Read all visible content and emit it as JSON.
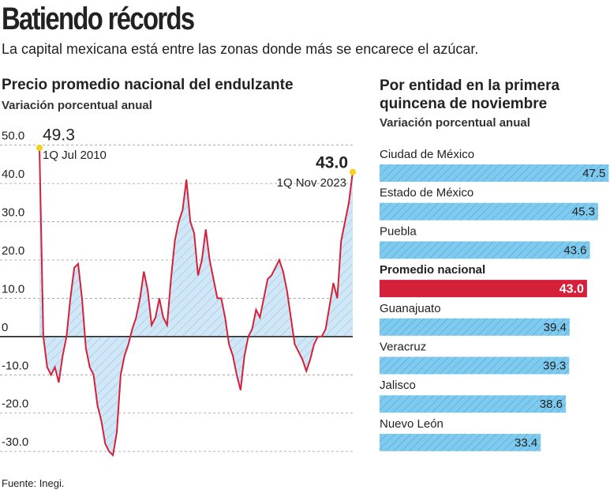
{
  "title": "Batiendo récords",
  "subtitle": "La capital mexicana está entre las zonas donde más se encarece el azúcar.",
  "source": "Fuente: Inegi.",
  "chart_data": [
    {
      "type": "line",
      "title": "Precio promedio nacional del endulzante",
      "subtitle": "Variación porcentual anual",
      "values": [
        49.3,
        0,
        -8,
        -10,
        -8,
        -12,
        -5,
        0,
        10,
        18,
        19,
        10,
        -3,
        -8,
        -10,
        -18,
        -22,
        -28,
        -30,
        -31,
        -25,
        -10,
        -5,
        -2,
        2,
        5,
        10,
        17,
        12,
        3,
        5,
        10,
        5,
        3,
        15,
        25,
        30,
        33,
        41,
        30,
        27,
        16,
        20,
        28,
        20,
        15,
        10,
        10,
        5,
        -2,
        -5,
        -10,
        -14,
        -5,
        0,
        2,
        7,
        5,
        10,
        15,
        16,
        18,
        20,
        17,
        12,
        5,
        -2,
        -4,
        -6,
        -9,
        -6,
        -2,
        0,
        0,
        2,
        8,
        14,
        10,
        25,
        30,
        35,
        43.0
      ],
      "value_labels": [
        "49.3",
        null,
        null,
        null,
        null,
        null,
        null,
        null,
        null,
        null,
        null,
        null,
        null,
        null,
        null,
        null,
        null,
        null,
        null,
        null,
        null,
        null,
        null,
        null,
        null,
        null,
        null,
        null,
        null,
        null,
        null,
        null,
        null,
        null,
        null,
        null,
        null,
        null,
        null,
        null,
        null,
        null,
        null,
        null,
        null,
        null,
        null,
        null,
        null,
        null,
        null,
        null,
        null,
        null,
        null,
        null,
        null,
        null,
        null,
        null,
        null,
        null,
        null,
        null,
        null,
        null,
        null,
        null,
        null,
        null,
        null,
        null,
        null,
        null,
        null,
        null,
        null,
        null,
        null,
        null,
        null,
        "43.0"
      ],
      "annotations": [
        "1Q Jul 2010",
        "1Q Nov 2023"
      ],
      "color": "#d6203a",
      "area_color": "#cfe7f7",
      "ylim": [
        -31,
        52
      ],
      "yticks": [
        {
          "value": 50,
          "label": "50.0"
        },
        {
          "value": 40,
          "label": "40.0"
        },
        {
          "value": 30,
          "label": "30.0"
        },
        {
          "value": 20,
          "label": "20.0"
        },
        {
          "value": 10,
          "label": "10.0"
        },
        0,
        {
          "value": -10,
          "label": "-10.0"
        },
        {
          "value": -20,
          "label": "-20.0"
        },
        {
          "value": -30,
          "label": "-30.0"
        }
      ],
      "grid": true
    },
    {
      "type": "bar",
      "orientation": "horizontal",
      "title": "Por entidad en la primera quincena de noviembre",
      "subtitle": "Variación porcentual anual",
      "categories": [
        "Ciudad de México",
        "Estado de México",
        "Puebla",
        "Promedio nacional",
        "Guanajuato",
        "Veracruz",
        "Jalisco",
        "Nuevo León"
      ],
      "values": [
        47.5,
        45.3,
        43.6,
        43.0,
        39.4,
        39.3,
        38.6,
        33.4
      ],
      "value_labels": [
        "47.5",
        "45.3",
        "43.6",
        "43.0",
        "39.4",
        "39.3",
        "38.6",
        "33.4"
      ],
      "colors": [
        "#7fcbf0",
        "#7fcbf0",
        "#7fcbf0",
        "#d6203a",
        "#7fcbf0",
        "#7fcbf0",
        "#7fcbf0",
        "#7fcbf0"
      ],
      "xlim": [
        0,
        47.6
      ]
    }
  ]
}
